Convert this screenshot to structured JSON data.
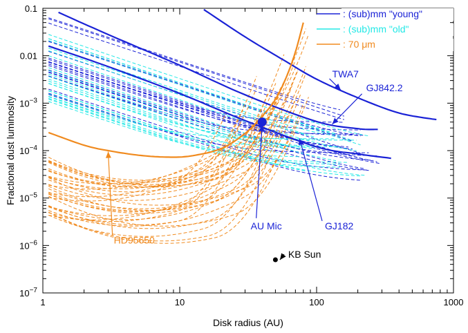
{
  "chart_data": {
    "type": "line",
    "xlabel": "Disk radius (AU)",
    "ylabel": "Fractional dust luminosity",
    "xscale": "log",
    "yscale": "log",
    "xlim": [
      1,
      1000
    ],
    "ylim": [
      1e-07,
      0.1
    ],
    "x_ticks": [
      {
        "value": 1,
        "label": "1"
      },
      {
        "value": 10,
        "label": "10"
      },
      {
        "value": 100,
        "label": "100"
      },
      {
        "value": 1000,
        "label": "1000"
      }
    ],
    "y_ticks": [
      {
        "value": 0.1,
        "label": "0.1",
        "mant": "",
        "exp": ""
      },
      {
        "value": 0.01,
        "label": "0.01",
        "mant": "",
        "exp": ""
      },
      {
        "value": 0.001,
        "label": "",
        "mant": "10",
        "exp": "−3"
      },
      {
        "value": 0.0001,
        "label": "",
        "mant": "10",
        "exp": "−4"
      },
      {
        "value": 1e-05,
        "label": "",
        "mant": "10",
        "exp": "−5"
      },
      {
        "value": 1e-06,
        "label": "",
        "mant": "10",
        "exp": "−6"
      },
      {
        "value": 1e-07,
        "label": "",
        "mant": "10",
        "exp": "−7"
      }
    ],
    "grid": false,
    "legend": {
      "placement": "top-right",
      "entries": [
        {
          "name": ": (sub)mm \"young\"",
          "color": "#1a22d6",
          "style": "solid"
        },
        {
          "name": ": (sub)mm \"old\"",
          "color": "#22e8e6",
          "style": "solid"
        },
        {
          "name": ": 70 μm",
          "color": "#f08a1e",
          "style": "solid"
        }
      ]
    },
    "colors": {
      "young": "#1a22d6",
      "old": "#22e8e6",
      "far_ir": "#f08a1e",
      "point": "#000000"
    },
    "series": [
      {
        "name": "TWA7",
        "color": "#1a22d6",
        "style": "solid",
        "x": [
          15,
          30,
          60,
          100,
          200,
          400,
          750
        ],
        "y": [
          0.094,
          0.025,
          0.0075,
          0.0032,
          0.0013,
          0.00062,
          0.00045
        ]
      },
      {
        "name": "GJ842.2",
        "color": "#1a22d6",
        "style": "solid",
        "x": [
          1.3,
          3,
          10,
          30,
          100,
          200,
          280
        ],
        "y": [
          0.082,
          0.028,
          0.0063,
          0.0015,
          0.00041,
          0.00029,
          0.00028
        ]
      },
      {
        "name": "AU Mic",
        "color": "#1a22d6",
        "style": "solid",
        "x": [
          1.1,
          3,
          10,
          30,
          100,
          200,
          350
        ],
        "y": [
          0.016,
          0.0059,
          0.0016,
          0.00043,
          0.00012,
          8.5e-05,
          6.9e-05
        ]
      },
      {
        "name": "HD95650",
        "color": "#f08a1e",
        "style": "solid",
        "x": [
          1.1,
          2,
          3,
          5,
          8,
          12,
          20,
          30,
          40,
          50,
          60,
          70,
          80
        ],
        "y": [
          0.00024,
          0.00013,
          0.0001,
          8e-05,
          7.3e-05,
          7.7e-05,
          0.00011,
          0.00023,
          0.00053,
          0.0012,
          0.0035,
          0.012,
          0.05
        ]
      }
    ],
    "dashed_families": [
      {
        "group": "young",
        "color": "#1a22d6",
        "count": 22,
        "x_start": 1.1,
        "x_end": [
          150,
          300
        ],
        "y_at_1_min": 0.0012,
        "y_at_1_max": 0.09,
        "slope": -0.95,
        "floor_min": 1.8e-05,
        "floor_max": 0.00045
      },
      {
        "group": "old",
        "color": "#22e8e6",
        "count": 24,
        "x_start": 1.1,
        "x_end": [
          60,
          250
        ],
        "y_at_1_min": 0.0011,
        "y_at_1_max": 0.04,
        "slope": -0.97,
        "floor_min": 2.5e-05,
        "floor_max": 0.00018
      },
      {
        "group": "far_ir",
        "color": "#f08a1e",
        "count": 34,
        "x_start": 1.1,
        "x_end": [
          22,
          90
        ],
        "y_at_1_min": 4e-06,
        "y_at_1_max": 8e-05,
        "dip_x_min": 2,
        "dip_x_max": 8,
        "rise_to": 0.1
      }
    ],
    "points": [
      {
        "name": "KB Sun",
        "x": 50,
        "y": 5e-07,
        "color": "#000000"
      },
      {
        "name": "AU Mic",
        "x": 40,
        "y": 0.0004,
        "color": "#1a22d6"
      }
    ],
    "annotations": [
      {
        "text": "TWA7",
        "color": "#1a22d6",
        "text_x": 130,
        "text_y": 0.0035,
        "arrow_to_x": 150,
        "arrow_to_y": 0.0019
      },
      {
        "text": "GJ842.2",
        "color": "#1a22d6",
        "text_x": 230,
        "text_y": 0.0018,
        "arrow_to_x": 130,
        "arrow_to_y": 0.00036
      },
      {
        "text": "AU Mic",
        "color": "#1a22d6",
        "text_x": 33,
        "text_y": 2.2e-06,
        "arrow_to_x": 40,
        "arrow_to_y": 0.00035
      },
      {
        "text": "GJ182",
        "color": "#1a22d6",
        "text_x": 115,
        "text_y": 2.2e-06,
        "arrow_to_x": 75,
        "arrow_to_y": 0.00018
      },
      {
        "text": "HD95650",
        "color": "#f08a1e",
        "text_x": 3.3,
        "text_y": 1.1e-06,
        "arrow_to_x": 3,
        "arrow_to_y": 9.5e-05
      },
      {
        "text": "KB Sun",
        "color": "#000000",
        "text_x": 62,
        "text_y": 5.5e-07,
        "arrow_to_x": 54,
        "arrow_to_y": 5e-07
      }
    ]
  }
}
